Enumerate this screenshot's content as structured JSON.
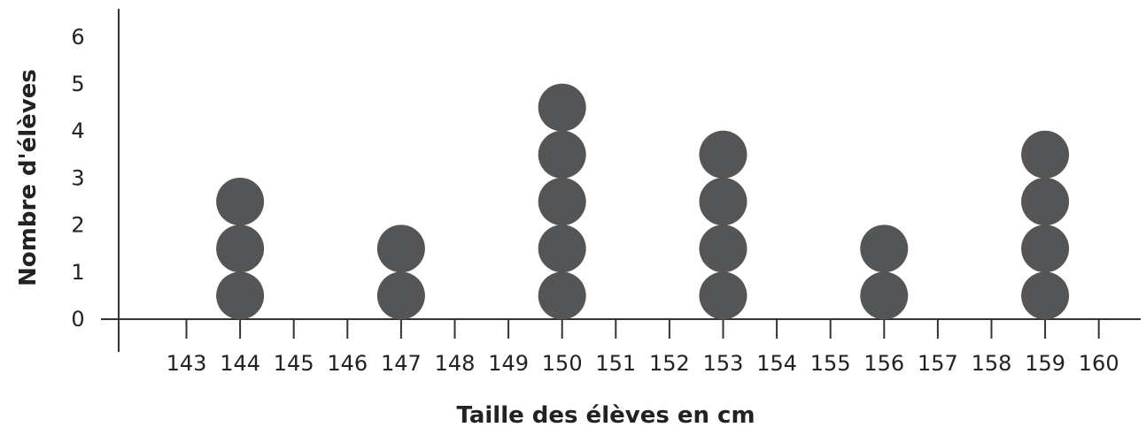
{
  "chart_data": {
    "type": "scatter",
    "subtype": "dot-plot",
    "title": "",
    "xlabel": "Taille des élèves en cm",
    "ylabel": "Nombre d'élèves",
    "x_ticks": [
      143,
      144,
      145,
      146,
      147,
      148,
      149,
      150,
      151,
      152,
      153,
      154,
      155,
      156,
      157,
      158,
      159,
      160
    ],
    "y_ticks": [
      0,
      1,
      2,
      3,
      4,
      5,
      6
    ],
    "xlim": [
      142,
      160.7
    ],
    "ylim": [
      0,
      6
    ],
    "grid": false,
    "legend": "none",
    "series": [
      {
        "x": [
          144,
          147,
          150,
          153,
          156,
          159
        ],
        "values": [
          3,
          2,
          5,
          4,
          2,
          4
        ]
      }
    ],
    "colors": {
      "dot": "#545557",
      "axis": "#333333",
      "text": "#222222"
    }
  }
}
